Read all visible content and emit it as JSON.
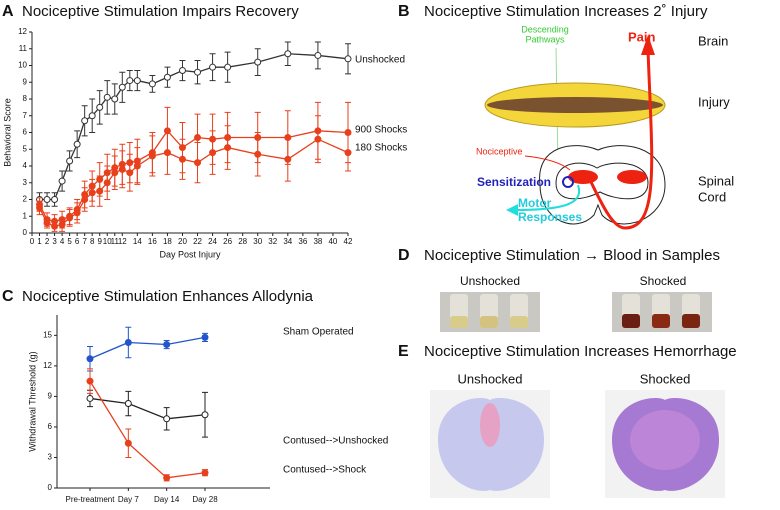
{
  "chart_data": [
    {
      "type": "line",
      "panel": "A",
      "title": "Nociceptive Stimulation Impairs Recovery",
      "x_label": "Day Post Injury",
      "y_label": "Behavioral Score",
      "x": [
        1,
        2,
        3,
        4,
        5,
        6,
        7,
        8,
        9,
        10,
        11,
        12,
        13,
        14,
        16,
        18,
        20,
        22,
        24,
        26,
        30,
        34,
        38,
        42
      ],
      "xlim": [
        0,
        42
      ],
      "xticks": [
        0,
        1,
        2,
        3,
        4,
        5,
        6,
        7,
        8,
        9,
        10,
        11,
        12,
        14,
        16,
        18,
        20,
        22,
        24,
        26,
        28,
        30,
        32,
        34,
        36,
        38,
        40,
        42
      ],
      "ylim": [
        0,
        12
      ],
      "yticks": [
        0,
        1,
        2,
        3,
        4,
        5,
        6,
        7,
        8,
        9,
        10,
        11,
        12
      ],
      "series": [
        {
          "name": "Unshocked",
          "color": "#333333",
          "marker": "open",
          "values": [
            2.0,
            2.0,
            2.0,
            3.1,
            4.3,
            5.3,
            6.7,
            7.0,
            7.5,
            8.1,
            8.0,
            8.7,
            9.1,
            9.1,
            8.9,
            9.3,
            9.7,
            9.6,
            9.9,
            9.9,
            10.2,
            10.7,
            10.6,
            10.4
          ],
          "errors": [
            0.4,
            0.4,
            0.4,
            0.6,
            0.6,
            0.8,
            0.9,
            1.0,
            1.0,
            1.0,
            0.9,
            0.9,
            0.6,
            0.6,
            0.5,
            0.6,
            0.6,
            0.7,
            0.8,
            0.9,
            0.8,
            0.7,
            0.8,
            0.9
          ]
        },
        {
          "name": "900 Shocks",
          "color": "#e8401c",
          "marker": "filled",
          "values": [
            1.7,
            0.8,
            0.7,
            0.8,
            1.0,
            1.4,
            2.3,
            2.8,
            3.2,
            3.6,
            3.9,
            4.1,
            4.2,
            4.3,
            4.8,
            6.1,
            5.1,
            5.7,
            5.6,
            5.7,
            5.7,
            5.7,
            6.1,
            6.0
          ],
          "errors": [
            0.4,
            0.4,
            0.4,
            0.5,
            0.5,
            0.6,
            0.8,
            0.9,
            1.0,
            1.1,
            1.1,
            1.2,
            1.2,
            1.3,
            1.2,
            1.4,
            1.5,
            1.4,
            1.5,
            1.5,
            1.5,
            1.6,
            1.7,
            1.8
          ]
        },
        {
          "name": "180 Shocks",
          "color": "#e8401c",
          "marker": "filled",
          "values": [
            1.5,
            0.6,
            0.4,
            0.5,
            0.9,
            1.2,
            2.0,
            2.4,
            2.5,
            3.0,
            3.6,
            3.8,
            3.6,
            4.0,
            4.6,
            4.8,
            4.4,
            4.2,
            4.8,
            5.1,
            4.7,
            4.4,
            5.6,
            4.8
          ],
          "errors": [
            0.4,
            0.3,
            0.3,
            0.4,
            0.5,
            0.6,
            0.7,
            0.8,
            0.9,
            1.0,
            1.0,
            1.1,
            1.1,
            1.1,
            1.2,
            1.3,
            1.2,
            1.2,
            1.3,
            1.3,
            1.3,
            1.3,
            1.4,
            1.1
          ]
        }
      ]
    },
    {
      "type": "line",
      "panel": "C",
      "title": "Nociceptive Stimulation Enhances Allodynia",
      "y_label": "Withdrawal Threshold (g)",
      "categories": [
        "Pre-treatment",
        "Day 7",
        "Day 14",
        "Day 28"
      ],
      "ylim": [
        0,
        17
      ],
      "yticks": [
        0,
        3,
        6,
        9,
        12,
        15
      ],
      "series": [
        {
          "name": "Sham Operated",
          "color": "#2255cc",
          "marker": "filled",
          "values": [
            12.7,
            14.3,
            14.1,
            14.8
          ],
          "errors": [
            1.2,
            1.5,
            0.4,
            0.4
          ]
        },
        {
          "name": "Contused-->Unshocked",
          "color": "#222222",
          "marker": "open",
          "values": [
            8.8,
            8.3,
            6.8,
            7.2
          ],
          "errors": [
            0.8,
            1.2,
            1.1,
            2.2
          ]
        },
        {
          "name": "Contused-->Shock",
          "color": "#e8401c",
          "marker": "filled",
          "values": [
            10.5,
            4.4,
            1.0,
            1.5
          ],
          "errors": [
            1.2,
            1.4,
            0.3,
            0.3
          ]
        }
      ]
    }
  ],
  "panels": {
    "B": {
      "letter": "B",
      "title": "Nociceptive Stimulation Increases 2˚ Injury",
      "descending": [
        "Descending",
        "Pathways"
      ],
      "pain": "Pain",
      "brain": "Brain",
      "injury": "Injury",
      "nociceptive": "Nociceptive",
      "sensitization": "Sensitization",
      "motor": [
        "Motor",
        "Responses"
      ],
      "spinal": [
        "Spinal",
        "Cord"
      ]
    },
    "D": {
      "letter": "D",
      "title": "Nociceptive Stimulation → Blood in Samples",
      "left": "Unshocked",
      "right": "Shocked"
    },
    "E": {
      "letter": "E",
      "title": "Nociceptive Stimulation Increases Hemorrhage",
      "left": "Unshocked",
      "right": "Shocked"
    }
  }
}
